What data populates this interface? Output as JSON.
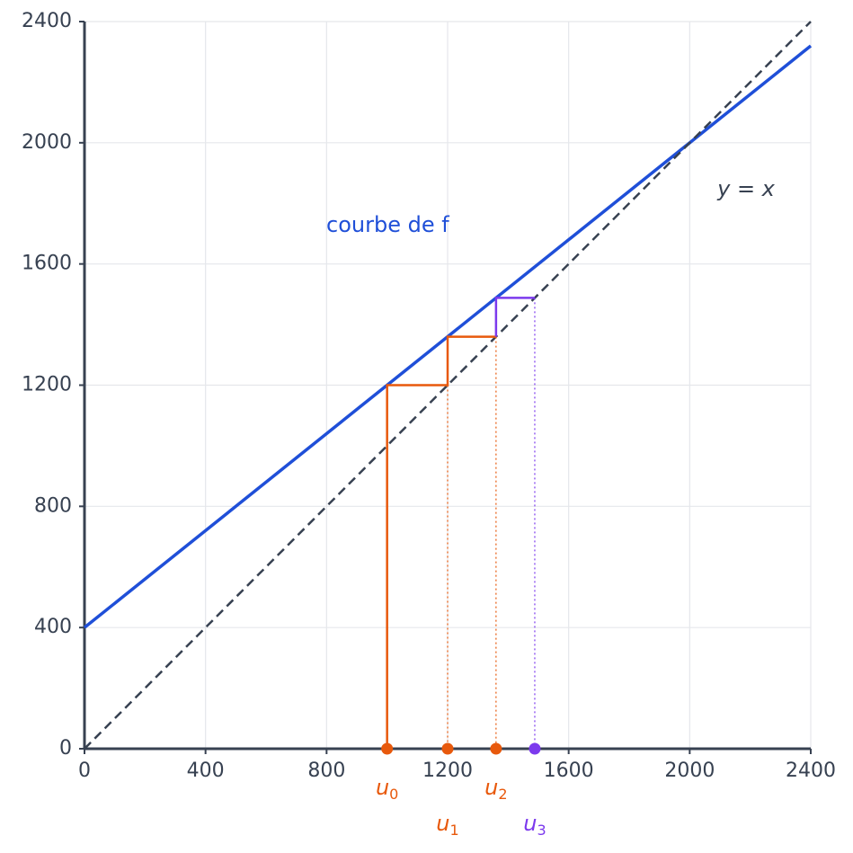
{
  "chart_data": {
    "type": "cobweb",
    "xlim": [
      0,
      2400
    ],
    "ylim": [
      0,
      2400
    ],
    "xticks": [
      0,
      400,
      800,
      1200,
      1600,
      2000,
      2400
    ],
    "yticks": [
      0,
      400,
      800,
      1200,
      1600,
      2000,
      2400
    ],
    "grid": true,
    "series": [
      {
        "color": "#1f4fd8",
        "style": "solid",
        "width": 3.5,
        "x": [
          0,
          2400
        ],
        "values": [
          400,
          2320
        ]
      },
      {
        "color": "#374151",
        "style": "dashed",
        "width": 2.5,
        "x": [
          0,
          2400
        ],
        "values": [
          0,
          2400
        ]
      },
      {
        "color": "#e8590c",
        "style": "solid",
        "width": 2.5,
        "x": [
          1000,
          1000,
          1200,
          1200,
          1360
        ],
        "values": [
          0,
          1200,
          1200,
          1360,
          1360
        ]
      },
      {
        "color": "#7c3aed",
        "style": "solid",
        "width": 2.5,
        "x": [
          1360,
          1360,
          1488
        ],
        "values": [
          1360,
          1488,
          1488
        ]
      },
      {
        "color": "#e8590c",
        "style": "dotted",
        "width": 1.2,
        "x": [
          1200,
          1200
        ],
        "values": [
          1200,
          0
        ]
      },
      {
        "color": "#e8590c",
        "style": "dotted",
        "width": 1.2,
        "x": [
          1360,
          1360
        ],
        "values": [
          1360,
          0
        ]
      },
      {
        "color": "#7c3aed",
        "style": "dotted",
        "width": 1.2,
        "x": [
          1488,
          1488
        ],
        "values": [
          1488,
          0
        ]
      }
    ],
    "sequence": [
      {
        "label": "u",
        "sub": "0",
        "value": 1000,
        "color": "#e8590c"
      },
      {
        "label": "u",
        "sub": "1",
        "value": 1200,
        "color": "#e8590c"
      },
      {
        "label": "u",
        "sub": "2",
        "value": 1360,
        "color": "#e8590c"
      },
      {
        "label": "u",
        "sub": "3",
        "value": 1488,
        "color": "#7c3aed"
      }
    ],
    "annotations": [
      {
        "text": "courbe de f",
        "color": "#1f4fd8"
      },
      {
        "text": "y = x",
        "color": "#374151"
      }
    ]
  }
}
